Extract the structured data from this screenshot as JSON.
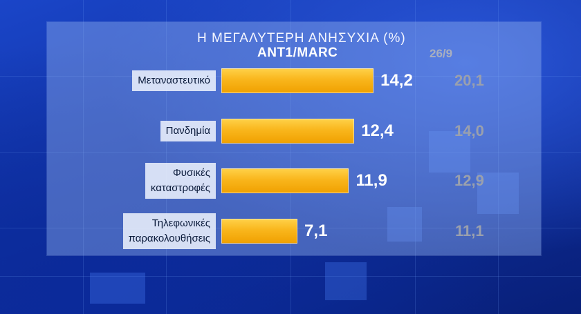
{
  "chart_data": {
    "type": "bar",
    "title": "Η ΜΕΓΑΛΥΤΕΡΗ ΑΝΗΣΥΧΙΑ (%)",
    "subtitle": "ANT1/MARC",
    "previous_label": "26/9",
    "categories": [
      "Μεταναστευτικό",
      "Πανδημία",
      "Φυσικές καταστροφές",
      "Τηλεφωνικές παρακολουθήσεις"
    ],
    "category_lines": [
      [
        "Μεταναστευτικό"
      ],
      [
        "Πανδημία"
      ],
      [
        "Φυσικές",
        "καταστροφές"
      ],
      [
        "Τηλεφωνικές",
        "παρακολουθήσεις"
      ]
    ],
    "series": [
      {
        "values": [
          14.2,
          12.4,
          11.9,
          7.1
        ]
      },
      {
        "name": "26/9",
        "values": [
          20.1,
          14.0,
          12.9,
          11.1
        ]
      }
    ],
    "value_labels": [
      "14,2",
      "12,4",
      "11,9",
      "7,1"
    ],
    "previous_value_labels": [
      "20,1",
      "14,0",
      "12,9",
      "11,1"
    ],
    "bar_color": "#f9b61c",
    "previous_color": "#9aa0ad"
  }
}
